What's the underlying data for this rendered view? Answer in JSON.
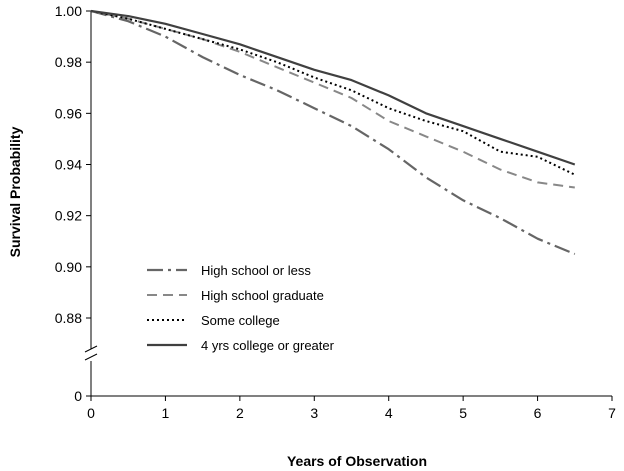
{
  "chart_data": {
    "type": "line",
    "title": "",
    "xlabel": "Years of Observation",
    "ylabel": "Survival Probability",
    "xlim": [
      0,
      7
    ],
    "ylim": [
      0.86,
      1.0
    ],
    "axis_break": true,
    "x_ticks": [
      0,
      1,
      2,
      3,
      4,
      5,
      6,
      7
    ],
    "x_tick_labels": [
      "0",
      "1",
      "2",
      "3",
      "4",
      "5",
      "6",
      "7"
    ],
    "y_ticks": [
      0.88,
      0.9,
      0.92,
      0.94,
      0.96,
      0.98,
      1.0
    ],
    "y_tick_labels": [
      "0.88",
      "0.90",
      "0.92",
      "0.94",
      "0.96",
      "0.98",
      "1.00"
    ],
    "y_zero_label": "0",
    "grid": false,
    "legend_position": "bottom-left",
    "series": [
      {
        "name": "High school or less",
        "style": "dash-dot",
        "color": "#666666",
        "x": [
          0,
          0.5,
          1,
          1.5,
          2,
          2.5,
          3,
          3.5,
          4,
          4.5,
          5,
          5.5,
          6,
          6.5
        ],
        "y": [
          1.0,
          0.996,
          0.99,
          0.982,
          0.975,
          0.969,
          0.962,
          0.955,
          0.946,
          0.935,
          0.926,
          0.919,
          0.911,
          0.905
        ]
      },
      {
        "name": "High school graduate",
        "style": "dashed",
        "color": "#888888",
        "x": [
          0,
          0.5,
          1,
          1.5,
          2,
          2.5,
          3,
          3.5,
          4,
          4.5,
          5,
          5.5,
          6,
          6.5
        ],
        "y": [
          1.0,
          0.997,
          0.993,
          0.989,
          0.984,
          0.978,
          0.972,
          0.966,
          0.957,
          0.951,
          0.945,
          0.938,
          0.933,
          0.931
        ]
      },
      {
        "name": "Some college",
        "style": "dotted",
        "color": "#000000",
        "x": [
          0,
          0.5,
          1,
          1.5,
          2,
          2.5,
          3,
          3.5,
          4,
          4.5,
          5,
          5.5,
          6,
          6.5
        ],
        "y": [
          1.0,
          0.997,
          0.993,
          0.989,
          0.985,
          0.98,
          0.974,
          0.969,
          0.962,
          0.957,
          0.953,
          0.945,
          0.943,
          0.936
        ]
      },
      {
        "name": "4 yrs college or greater",
        "style": "solid",
        "color": "#404040",
        "x": [
          0,
          0.5,
          1,
          1.5,
          2,
          2.5,
          3,
          3.5,
          4,
          4.5,
          5,
          5.5,
          6,
          6.5
        ],
        "y": [
          1.0,
          0.998,
          0.995,
          0.991,
          0.987,
          0.982,
          0.977,
          0.973,
          0.967,
          0.96,
          0.955,
          0.95,
          0.945,
          0.94
        ]
      }
    ]
  }
}
